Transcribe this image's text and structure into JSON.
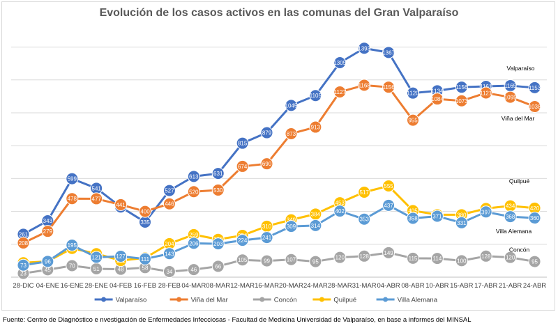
{
  "chart_data": {
    "type": "line",
    "title": "Evolución de los casos activos en las comunas del Gran Valparaíso",
    "categories": [
      "28-DIC",
      "04-ENE",
      "16-ENE",
      "28-ENE",
      "04-FEB",
      "16-FEB",
      "28-FEB",
      "04-MAR",
      "08-MAR",
      "12-MAR",
      "16-MAR",
      "20-MAR",
      "24-MAR",
      "28-MAR",
      "31-MAR",
      "04-ABR",
      "08-ABR",
      "10-ABR",
      "15-ABR",
      "17-ABR",
      "21-ABR",
      "24-ABR"
    ],
    "ylim": [
      0,
      1500
    ],
    "grid": true,
    "legend_position": "bottom",
    "series": [
      {
        "name": "Valparaíso",
        "color": "#4472c4",
        "end_label": "Valparaíso",
        "values": [
          261,
          343,
          599,
          541,
          427,
          335,
          527,
          613,
          631,
          815,
          879,
          1045,
          1105,
          1305,
          1393,
          1367,
          1120,
          1134,
          1156,
          1161,
          1165,
          1153
        ]
      },
      {
        "name": "Viña del Mar",
        "color": "#ed7d31",
        "end_label": "Viña del Mar",
        "values": [
          208,
          279,
          478,
          477,
          441,
          400,
          446,
          520,
          530,
          674,
          690,
          873,
          913,
          1127,
          1168,
          1156,
          955,
          1084,
          1073,
          1121,
          1095,
          1038
        ]
      },
      {
        "name": "Concón",
        "color": "#a5a5a5",
        "end_label": "Concón",
        "values": [
          23,
          45,
          70,
          51,
          48,
          58,
          34,
          46,
          66,
          105,
          99,
          107,
          95,
          120,
          128,
          149,
          115,
          114,
          100,
          128,
          120,
          95
        ]
      },
      {
        "name": "Quilpué",
        "color": "#ffc000",
        "end_label": "Quilpué",
        "values": [
          88,
          96,
          175,
          143,
          101,
          117,
          204,
          259,
          230,
          254,
          310,
          349,
          384,
          453,
          517,
          555,
          405,
          380,
          380,
          418,
          434,
          420
        ]
      },
      {
        "name": "Villa Alemana",
        "color": "#5b9bd5",
        "end_label": "Villa Alemana",
        "values": [
          73,
          96,
          195,
          121,
          127,
          111,
          143,
          206,
          203,
          224,
          241,
          309,
          314,
          402,
          353,
          437,
          358,
          371,
          331,
          397,
          368,
          360
        ]
      }
    ]
  },
  "footer": {
    "source": "Fuente: Centro de Diagnóstico e  nvestigación de Enfermedades Infecciosas - Facultad de Medicina Universidad de Valparaíso, en base a informes del MINSAL"
  }
}
